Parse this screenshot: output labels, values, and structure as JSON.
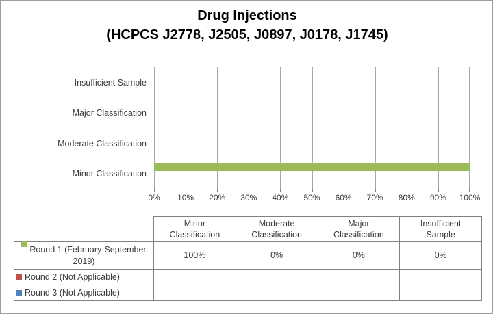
{
  "window": {
    "background": "#ffffff",
    "border_color": "#9e9e9e"
  },
  "chart_data": {
    "type": "bar",
    "orientation": "horizontal",
    "title": "Drug Injections",
    "subtitle": "(HCPCS J2778, J2505, J0897, J0178, J1745)",
    "categories": [
      "Minor Classification",
      "Moderate Classification",
      "Major Classification",
      "Insufficient Sample"
    ],
    "category_axis_order_top_to_bottom": [
      "Insufficient Sample",
      "Major Classification",
      "Moderate Classification",
      "Minor Classification"
    ],
    "x_axis": {
      "min": 0,
      "max": 100,
      "tick_step": 10,
      "ticks": [
        "0%",
        "10%",
        "20%",
        "30%",
        "40%",
        "50%",
        "60%",
        "70%",
        "80%",
        "90%",
        "100%"
      ]
    },
    "gridlines": true,
    "legend_position": "data-table-left",
    "series": [
      {
        "name": "Round 1 (February-September 2019)",
        "color": "#9BBB59",
        "values": [
          100,
          0,
          0,
          0
        ],
        "display_values": [
          "100%",
          "0%",
          "0%",
          "0%"
        ]
      },
      {
        "name": "Round 2 (Not Applicable)",
        "color": "#C0504D",
        "values": [
          null,
          null,
          null,
          null
        ],
        "display_values": [
          "",
          "",
          "",
          ""
        ]
      },
      {
        "name": "Round 3 (Not Applicable)",
        "color": "#4F81BD",
        "values": [
          null,
          null,
          null,
          null
        ],
        "display_values": [
          "",
          "",
          "",
          ""
        ]
      }
    ],
    "data_table": {
      "column_headers": [
        "Minor\nClassification",
        "Moderate\nClassification",
        "Major\nClassification",
        "Insufficient\nSample"
      ]
    },
    "colors": {
      "gridline": "#a6a6a6",
      "axis_line": "#808080",
      "table_border": "#808080",
      "text": "#3c3c3c",
      "title_text": "#000000"
    }
  }
}
